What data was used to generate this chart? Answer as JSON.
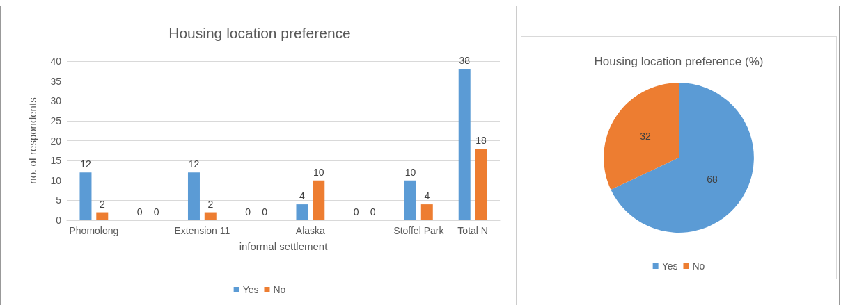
{
  "chart_data": [
    {
      "type": "bar",
      "title": "Housing location preference",
      "xlabel": "informal settlement",
      "ylabel": "no. of respondents",
      "categories": [
        "Phomolong",
        null,
        "Extension 11",
        null,
        "Alaska",
        null,
        "Stoffel Park",
        "Total N"
      ],
      "series": [
        {
          "name": "Yes",
          "color": "#5b9bd5",
          "values": [
            12,
            0,
            12,
            0,
            4,
            0,
            10,
            38
          ]
        },
        {
          "name": "No",
          "color": "#ed7d31",
          "values": [
            2,
            0,
            2,
            0,
            10,
            0,
            4,
            18
          ]
        }
      ],
      "ylim": [
        0,
        40
      ],
      "yticks": [
        0,
        5,
        10,
        15,
        20,
        25,
        30,
        35,
        40
      ],
      "grid": "y",
      "legend": "bottom",
      "data_labels": true
    },
    {
      "type": "pie",
      "title": "Housing location preference (%)",
      "categories": [
        "Yes",
        "No"
      ],
      "values": [
        68,
        32
      ],
      "colors": [
        "#5b9bd5",
        "#ed7d31"
      ],
      "legend": "bottom",
      "data_labels": true
    }
  ]
}
